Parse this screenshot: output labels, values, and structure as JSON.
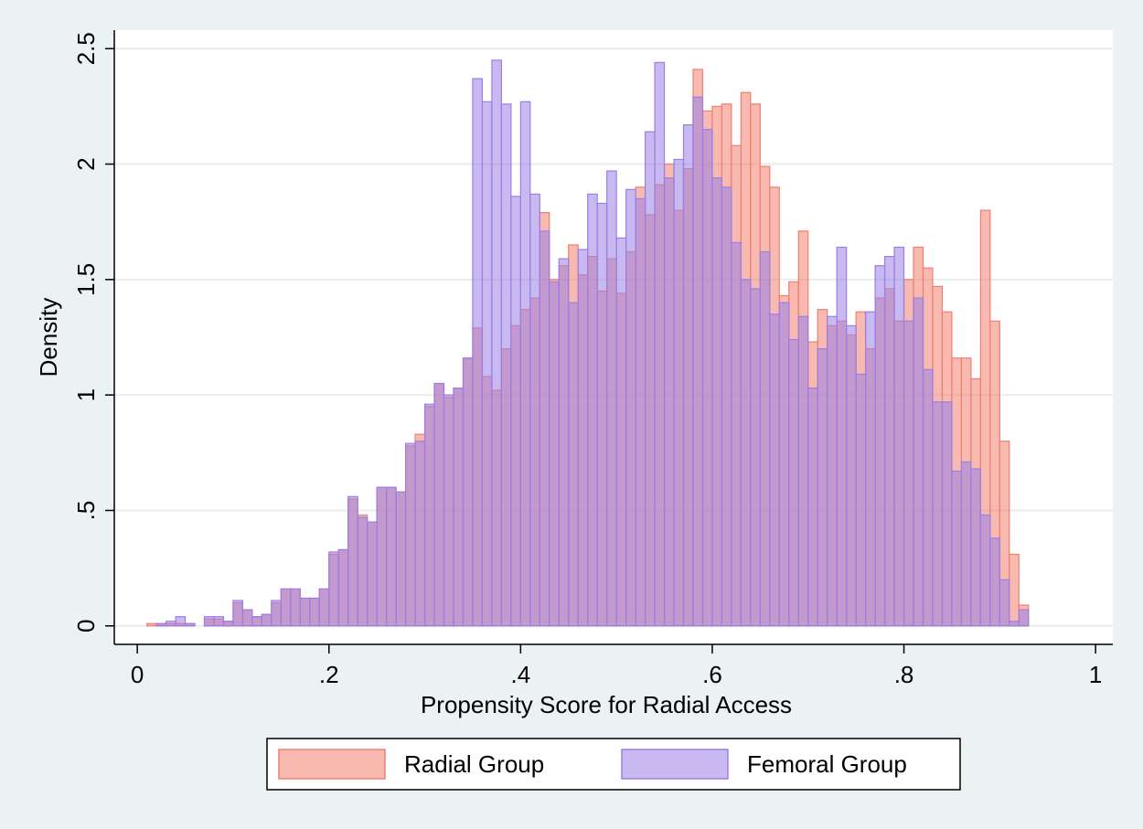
{
  "chart_data": {
    "type": "histogram",
    "x_label": "Propensity Score for Radial Access",
    "y_label": "Density",
    "bins": [
      0.01,
      0.02,
      0.03,
      0.04,
      0.05,
      0.06,
      0.07,
      0.08,
      0.09,
      0.1,
      0.11,
      0.12,
      0.13,
      0.14,
      0.15,
      0.16,
      0.17,
      0.18,
      0.19,
      0.2,
      0.21,
      0.22,
      0.23,
      0.24,
      0.25,
      0.26,
      0.27,
      0.28,
      0.29,
      0.3,
      0.31,
      0.32,
      0.33,
      0.34,
      0.35,
      0.36,
      0.37,
      0.38,
      0.39,
      0.4,
      0.41,
      0.42,
      0.43,
      0.44,
      0.45,
      0.46,
      0.47,
      0.48,
      0.49,
      0.5,
      0.51,
      0.52,
      0.53,
      0.54,
      0.55,
      0.56,
      0.57,
      0.58,
      0.59,
      0.6,
      0.61,
      0.62,
      0.63,
      0.64,
      0.65,
      0.66,
      0.67,
      0.68,
      0.69,
      0.7,
      0.71,
      0.72,
      0.73,
      0.74,
      0.75,
      0.76,
      0.77,
      0.78,
      0.79,
      0.8,
      0.81,
      0.82,
      0.83,
      0.84,
      0.85,
      0.86,
      0.87,
      0.88,
      0.89,
      0.9,
      0.91,
      0.92,
      0.93
    ],
    "series": [
      {
        "name": "Radial Group",
        "color": "#f08070",
        "values": [
          0.01,
          0.01,
          0.01,
          0.01,
          0.01,
          0,
          0.03,
          0.03,
          0.02,
          0.1,
          0.07,
          0.04,
          0.05,
          0.1,
          0.16,
          0.16,
          0.12,
          0.12,
          0.16,
          0.31,
          0.33,
          0.55,
          0.48,
          0.45,
          0.6,
          0.6,
          0.58,
          0.78,
          0.83,
          0.95,
          1.05,
          0.99,
          1.03,
          1.16,
          1.29,
          1.08,
          1.02,
          1.2,
          1.3,
          1.37,
          1.42,
          1.79,
          1.5,
          1.56,
          1.65,
          1.52,
          1.6,
          1.45,
          1.59,
          1.44,
          1.62,
          1.9,
          1.78,
          1.91,
          2.0,
          1.8,
          1.98,
          2.41,
          2.23,
          2.25,
          2.26,
          2.08,
          2.31,
          2.26,
          1.99,
          1.9,
          1.43,
          1.49,
          1.71,
          1.23,
          1.37,
          1.3,
          1.32,
          1.26,
          1.36,
          1.2,
          1.42,
          1.46,
          1.32,
          1.5,
          1.64,
          1.55,
          1.47,
          1.36,
          1.16,
          1.16,
          1.07,
          1.8,
          1.32,
          0.8,
          0.31,
          0.09
        ]
      },
      {
        "name": "Femoral Group",
        "color": "#9b7fe6",
        "values": [
          0,
          0.01,
          0.02,
          0.04,
          0.01,
          0,
          0.04,
          0.04,
          0.02,
          0.11,
          0.07,
          0.04,
          0.05,
          0.11,
          0.16,
          0.16,
          0.12,
          0.12,
          0.16,
          0.32,
          0.33,
          0.56,
          0.47,
          0.45,
          0.6,
          0.6,
          0.58,
          0.79,
          0.8,
          0.96,
          1.05,
          1.0,
          1.03,
          1.16,
          2.37,
          2.27,
          2.45,
          2.26,
          1.86,
          2.27,
          1.87,
          1.71,
          1.49,
          1.59,
          1.4,
          1.63,
          1.87,
          1.83,
          1.97,
          1.68,
          1.89,
          1.85,
          2.14,
          2.44,
          1.94,
          2.02,
          2.17,
          2.29,
          2.15,
          1.94,
          1.9,
          1.66,
          1.5,
          1.46,
          1.62,
          1.35,
          1.4,
          1.24,
          1.34,
          1.03,
          1.2,
          1.34,
          1.64,
          1.3,
          1.09,
          1.36,
          1.56,
          1.6,
          1.64,
          1.32,
          1.42,
          1.11,
          0.97,
          0.97,
          0.67,
          0.71,
          0.68,
          0.48,
          0.38,
          0.2,
          0.02,
          0.07
        ]
      }
    ],
    "xlim": [
      -0.024,
      1.018
    ],
    "ylim": [
      -0.08,
      2.58
    ],
    "xticks": [
      0,
      {
        "value": 0.2,
        "label": ".2"
      },
      {
        "value": 0.4,
        "label": ".4"
      },
      {
        "value": 0.6,
        "label": ".6"
      },
      {
        "value": 0.8,
        "label": ".8"
      },
      1
    ],
    "yticks": [
      0,
      {
        "value": 0.5,
        "label": ".5"
      },
      1,
      1.5,
      2,
      2.5
    ],
    "grid": true,
    "legend": "bottom"
  }
}
